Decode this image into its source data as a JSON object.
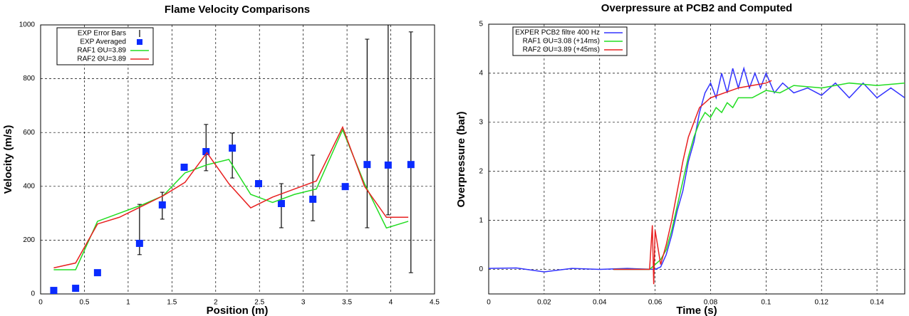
{
  "chart_data": [
    {
      "type": "line",
      "title": "Flame Velocity Comparisons",
      "x_label": "Position (m)",
      "y_label": "Velocity (m/s)",
      "xlim": [
        0,
        4.5
      ],
      "xticks": [
        0,
        0.5,
        1,
        1.5,
        2,
        2.5,
        3,
        3.5,
        4,
        4.5
      ],
      "ylim": [
        0,
        1000
      ],
      "yticks": [
        0,
        200,
        400,
        600,
        800,
        1000
      ],
      "grid": true,
      "legend": "upper left",
      "series": [
        {
          "name": "EXP Error Bars",
          "mark": "errorbar",
          "color": "#000000",
          "x": [
            1.13,
            1.39,
            1.89,
            2.19,
            2.75,
            3.11,
            3.73,
            3.97,
            4.23
          ],
          "low": [
            146,
            278,
            458,
            431,
            246,
            272,
            246,
            294,
            79
          ],
          "high": [
            333,
            378,
            630,
            598,
            410,
            516,
            947,
            1000,
            974
          ]
        },
        {
          "name": "EXP Averaged",
          "mark": "square",
          "color": "#0a2bff",
          "x": [
            0.15,
            0.4,
            0.65,
            1.13,
            1.39,
            1.64,
            1.89,
            2.19,
            2.49,
            2.75,
            3.11,
            3.48,
            3.73,
            3.97,
            4.23
          ],
          "values": [
            13,
            21,
            79,
            188,
            331,
            471,
            529,
            542,
            410,
            336,
            352,
            399,
            481,
            479,
            481
          ]
        },
        {
          "name": "RAF1 ΘU=3.89",
          "mark": "line",
          "color": "#22dd22",
          "x": [
            0.15,
            0.4,
            0.65,
            0.9,
            1.15,
            1.4,
            1.65,
            1.9,
            2.15,
            2.4,
            2.65,
            2.9,
            3.15,
            3.45,
            3.7,
            3.95,
            4.2
          ],
          "values": [
            90,
            90,
            270,
            300,
            330,
            365,
            450,
            480,
            500,
            370,
            340,
            370,
            390,
            610,
            410,
            245,
            270
          ]
        },
        {
          "name": "RAF2 ΘU=3.89",
          "mark": "line",
          "color": "#e82020",
          "x": [
            0.15,
            0.4,
            0.65,
            0.9,
            1.15,
            1.4,
            1.65,
            1.9,
            2.15,
            2.4,
            2.65,
            2.9,
            3.15,
            3.45,
            3.7,
            3.95,
            4.2
          ],
          "values": [
            97,
            115,
            260,
            285,
            325,
            365,
            415,
            525,
            410,
            320,
            360,
            390,
            420,
            620,
            400,
            285,
            285
          ]
        }
      ]
    },
    {
      "type": "line",
      "title": "Overpressure at PCB2 and Computed",
      "x_label": "Time (s)",
      "y_label": "Overpressure (bar)",
      "xlim": [
        0,
        0.15
      ],
      "xticks": [
        0,
        0.02,
        0.04,
        0.06,
        0.08,
        0.1,
        0.12,
        0.14
      ],
      "ylim": [
        -0.5,
        5
      ],
      "yticks": [
        0,
        1,
        2,
        3,
        4,
        5
      ],
      "grid": true,
      "legend": "upper left",
      "series": [
        {
          "name": "EXPER PCB2 filtre 400 Hz",
          "mark": "line",
          "color": "#3333ff",
          "x": [
            0,
            0.01,
            0.02,
            0.03,
            0.04,
            0.05,
            0.06,
            0.062,
            0.064,
            0.066,
            0.068,
            0.07,
            0.072,
            0.074,
            0.076,
            0.078,
            0.08,
            0.082,
            0.084,
            0.086,
            0.088,
            0.09,
            0.092,
            0.094,
            0.096,
            0.098,
            0.1,
            0.103,
            0.106,
            0.11,
            0.115,
            0.12,
            0.125,
            0.13,
            0.135,
            0.14,
            0.145,
            0.15
          ],
          "values": [
            0.02,
            0.03,
            -0.05,
            0.02,
            0.0,
            0.02,
            0.0,
            0.05,
            0.3,
            0.7,
            1.2,
            1.6,
            2.2,
            2.6,
            3.2,
            3.6,
            3.8,
            3.5,
            4.0,
            3.6,
            4.1,
            3.7,
            4.1,
            3.7,
            4.0,
            3.7,
            4.0,
            3.6,
            3.8,
            3.6,
            3.7,
            3.55,
            3.8,
            3.5,
            3.8,
            3.5,
            3.7,
            3.5
          ]
        },
        {
          "name": "RAF1 ΘU=3.08 (+14ms)",
          "mark": "line",
          "color": "#22dd22",
          "x": [
            0.045,
            0.058,
            0.06,
            0.062,
            0.064,
            0.066,
            0.068,
            0.07,
            0.072,
            0.074,
            0.076,
            0.078,
            0.08,
            0.082,
            0.084,
            0.086,
            0.088,
            0.09,
            0.095,
            0.1,
            0.105,
            0.11,
            0.12,
            0.13,
            0.14,
            0.15
          ],
          "values": [
            0,
            0,
            0.1,
            0.2,
            0.4,
            0.8,
            1.3,
            1.8,
            2.3,
            2.7,
            3.0,
            3.2,
            3.1,
            3.3,
            3.2,
            3.4,
            3.3,
            3.5,
            3.5,
            3.65,
            3.6,
            3.75,
            3.7,
            3.8,
            3.75,
            3.8
          ]
        },
        {
          "name": "RAF2 ΘU=3.89 (+45ms)",
          "mark": "line",
          "color": "#e82020",
          "x": [
            0.045,
            0.058,
            0.059,
            0.0595,
            0.06,
            0.062,
            0.064,
            0.066,
            0.068,
            0.07,
            0.072,
            0.074,
            0.076,
            0.078,
            0.08,
            0.085,
            0.09,
            0.095,
            0.1,
            0.102
          ],
          "values": [
            0,
            0,
            0.9,
            -0.3,
            0.8,
            0.1,
            0.5,
            1.0,
            1.6,
            2.2,
            2.7,
            3.0,
            3.3,
            3.4,
            3.5,
            3.6,
            3.7,
            3.75,
            3.8,
            3.85
          ]
        }
      ]
    }
  ]
}
